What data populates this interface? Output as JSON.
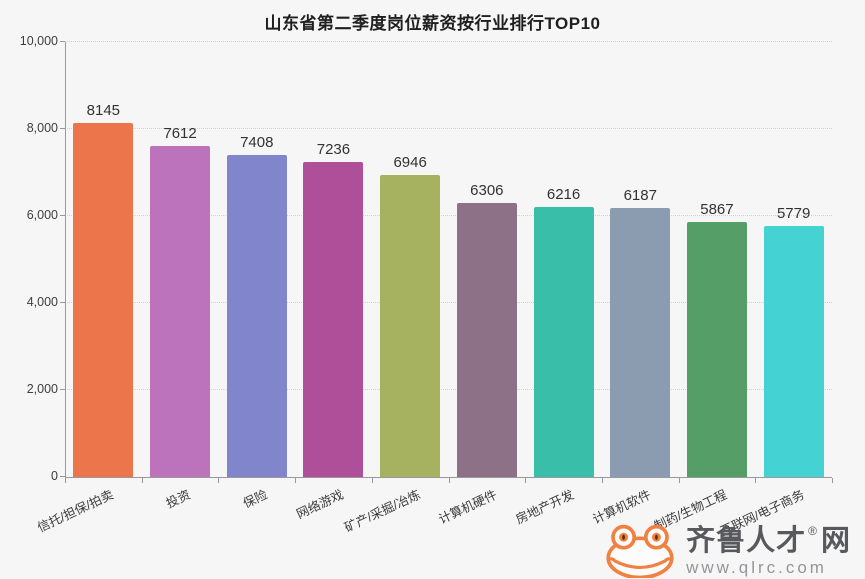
{
  "page": {
    "background": "#f7f6f7"
  },
  "chart_data": {
    "type": "bar",
    "title": "山东省第二季度岗位薪资按行业排行TOP10",
    "categories": [
      "信托/担保/拍卖",
      "投资",
      "保险",
      "网络游戏",
      "矿产/采掘/冶炼",
      "计算机硬件",
      "房地产开发",
      "计算机软件",
      "制药/生物工程",
      "互联网/电子商务"
    ],
    "values": [
      8145,
      7612,
      7408,
      7236,
      6946,
      6306,
      6216,
      6187,
      5867,
      5779
    ],
    "value_labels": [
      "8145",
      "7612",
      "7408",
      "7236",
      "6946",
      "6306",
      "6216",
      "6187",
      "5867",
      "5779"
    ],
    "bar_colors": [
      "#ed754b",
      "#bd73bc",
      "#8186cc",
      "#af4f9a",
      "#a6b25f",
      "#8d7287",
      "#39bfa9",
      "#8b9cb1",
      "#559e67",
      "#45d2d2"
    ],
    "xlabel": "",
    "ylabel": "",
    "ylim": [
      0,
      10000
    ],
    "ytick_values": [
      0,
      2000,
      4000,
      6000,
      8000,
      10000
    ],
    "ytick_labels": [
      "0",
      "2,000",
      "4,000",
      "6,000",
      "8,000",
      "10,000"
    ],
    "grid": "horizontal-dotted",
    "legend": "none"
  },
  "watermark": {
    "icon": "frog-mascot-icon",
    "brand_text": "齐鲁人才",
    "registered_mark": "®",
    "brand_suffix": "网",
    "url": "www.qlrc.com",
    "brand_color": "#f18143",
    "text_color": "#58595c",
    "url_color": "#939598"
  }
}
